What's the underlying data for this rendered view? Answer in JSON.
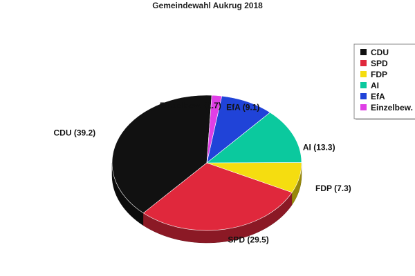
{
  "chart_data": {
    "type": "pie",
    "title": "Gemeindewahl Aukrug 2018",
    "legend_position": "top-right",
    "three_d": true,
    "slices": [
      {
        "name": "CDU",
        "value": 39.2,
        "label": "CDU (39.2)",
        "color": "#111111"
      },
      {
        "name": "SPD",
        "value": 29.5,
        "label": "SPD (29.5)",
        "color": "#e0283c"
      },
      {
        "name": "FDP",
        "value": 7.3,
        "label": "FDP (7.3)",
        "color": "#f5dd10"
      },
      {
        "name": "AI",
        "value": 13.3,
        "label": "AI (13.3)",
        "color": "#0bc99e"
      },
      {
        "name": "EfA",
        "value": 9.1,
        "label": "EfA (9.1)",
        "color": "#2043d8"
      },
      {
        "name": "Einzelbew.",
        "value": 1.7,
        "label": "Einzelbew. (1.7)",
        "color": "#df3fe6"
      }
    ]
  }
}
